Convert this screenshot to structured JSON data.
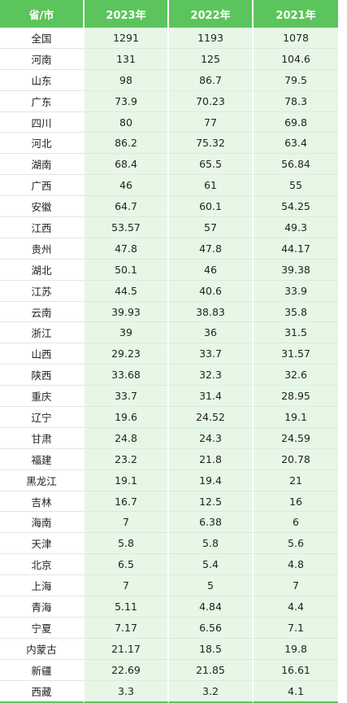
{
  "colors": {
    "header_bg": "#5cc45c",
    "value_cell_bg": "#e6f7e6"
  },
  "headers": [
    "省/市",
    "2023年",
    "2022年",
    "2021年"
  ],
  "rows": [
    [
      "全国",
      "1291",
      "1193",
      "1078"
    ],
    [
      "河南",
      "131",
      "125",
      "104.6"
    ],
    [
      "山东",
      "98",
      "86.7",
      "79.5"
    ],
    [
      "广东",
      "73.9",
      "70.23",
      "78.3"
    ],
    [
      "四川",
      "80",
      "77",
      "69.8"
    ],
    [
      "河北",
      "86.2",
      "75.32",
      "63.4"
    ],
    [
      "湖南",
      "68.4",
      "65.5",
      "56.84"
    ],
    [
      "广西",
      "46",
      "61",
      "55"
    ],
    [
      "安徽",
      "64.7",
      "60.1",
      "54.25"
    ],
    [
      "江西",
      "53.57",
      "57",
      "49.3"
    ],
    [
      "贵州",
      "47.8",
      "47.8",
      "44.17"
    ],
    [
      "湖北",
      "50.1",
      "46",
      "39.38"
    ],
    [
      "江苏",
      "44.5",
      "40.6",
      "33.9"
    ],
    [
      "云南",
      "39.93",
      "38.83",
      "35.8"
    ],
    [
      "浙江",
      "39",
      "36",
      "31.5"
    ],
    [
      "山西",
      "29.23",
      "33.7",
      "31.57"
    ],
    [
      "陕西",
      "33.68",
      "32.3",
      "32.6"
    ],
    [
      "重庆",
      "33.7",
      "31.4",
      "28.95"
    ],
    [
      "辽宁",
      "19.6",
      "24.52",
      "19.1"
    ],
    [
      "甘肃",
      "24.8",
      "24.3",
      "24.59"
    ],
    [
      "福建",
      "23.2",
      "21.8",
      "20.78"
    ],
    [
      "黑龙江",
      "19.1",
      "19.4",
      "21"
    ],
    [
      "吉林",
      "16.7",
      "12.5",
      "16"
    ],
    [
      "海南",
      "7",
      "6.38",
      "6"
    ],
    [
      "天津",
      "5.8",
      "5.8",
      "5.6"
    ],
    [
      "北京",
      "6.5",
      "5.4",
      "4.8"
    ],
    [
      "上海",
      "7",
      "5",
      "7"
    ],
    [
      "青海",
      "5.11",
      "4.84",
      "4.4"
    ],
    [
      "宁夏",
      "7.17",
      "6.56",
      "7.1"
    ],
    [
      "内蒙古",
      "21.17",
      "18.5",
      "19.8"
    ],
    [
      "新疆",
      "22.69",
      "21.85",
      "16.61"
    ],
    [
      "西藏",
      "3.3",
      "3.2",
      "4.1"
    ]
  ]
}
